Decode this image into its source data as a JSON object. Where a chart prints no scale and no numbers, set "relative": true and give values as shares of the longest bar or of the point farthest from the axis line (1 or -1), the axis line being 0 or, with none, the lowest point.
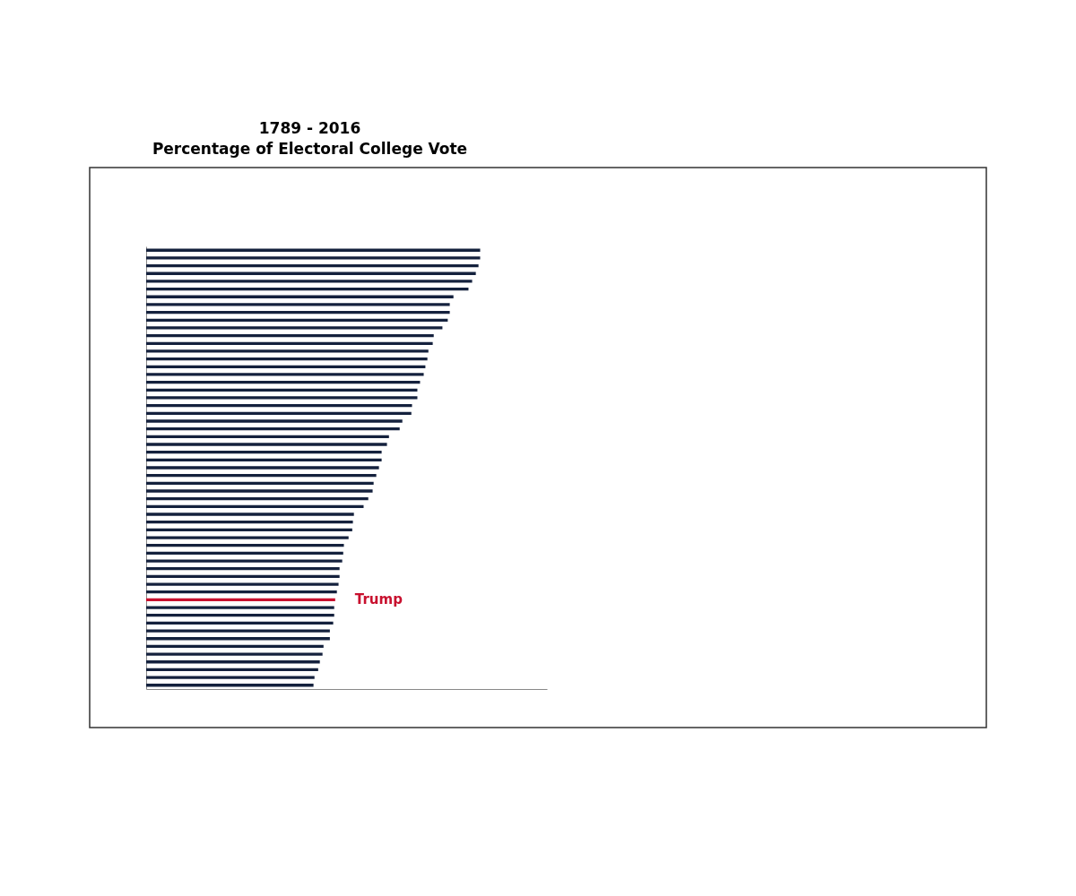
{
  "chart_data": {
    "type": "bar",
    "orientation": "horizontal",
    "relative": true,
    "title": "1789 - 2016",
    "subtitle": "Percentage of Electoral College Vote",
    "categories": [
      null,
      null,
      null,
      null,
      null,
      null,
      null,
      null,
      null,
      null,
      null,
      null,
      null,
      null,
      null,
      null,
      null,
      null,
      null,
      null,
      null,
      null,
      null,
      null,
      null,
      null,
      null,
      null,
      null,
      null,
      null,
      null,
      null,
      null,
      null,
      null,
      null,
      null,
      null,
      null,
      null,
      null,
      null,
      null,
      null,
      "Trump",
      null,
      null,
      null,
      null,
      null,
      null,
      null,
      null,
      null,
      null,
      null
    ],
    "values": [
      1,
      1,
      0.995,
      0.987,
      0.976,
      0.965,
      0.92,
      0.909,
      0.909,
      0.903,
      0.887,
      0.861,
      0.858,
      0.845,
      0.842,
      0.836,
      0.831,
      0.82,
      0.812,
      0.812,
      0.796,
      0.794,
      0.767,
      0.759,
      0.727,
      0.721,
      0.705,
      0.705,
      0.697,
      0.689,
      0.681,
      0.678,
      0.665,
      0.651,
      0.622,
      0.619,
      0.617,
      0.606,
      0.592,
      0.59,
      0.587,
      0.579,
      0.579,
      0.576,
      0.571,
      0.566,
      0.563,
      0.563,
      0.56,
      0.55,
      0.55,
      0.531,
      0.528,
      0.52,
      0.515,
      0.504,
      0.501
    ],
    "colors": [
      "#14213d",
      "#14213d",
      "#14213d",
      "#14213d",
      "#14213d",
      "#14213d",
      "#14213d",
      "#14213d",
      "#14213d",
      "#14213d",
      "#14213d",
      "#14213d",
      "#14213d",
      "#14213d",
      "#14213d",
      "#14213d",
      "#14213d",
      "#14213d",
      "#14213d",
      "#14213d",
      "#14213d",
      "#14213d",
      "#14213d",
      "#14213d",
      "#14213d",
      "#14213d",
      "#14213d",
      "#14213d",
      "#14213d",
      "#14213d",
      "#14213d",
      "#14213d",
      "#14213d",
      "#14213d",
      "#14213d",
      "#14213d",
      "#14213d",
      "#14213d",
      "#14213d",
      "#14213d",
      "#14213d",
      "#14213d",
      "#14213d",
      "#14213d",
      "#14213d",
      "#c8102e",
      "#14213d",
      "#14213d",
      "#14213d",
      "#14213d",
      "#14213d",
      "#14213d",
      "#14213d",
      "#14213d",
      "#14213d",
      "#14213d",
      "#14213d"
    ],
    "grid": false
  }
}
